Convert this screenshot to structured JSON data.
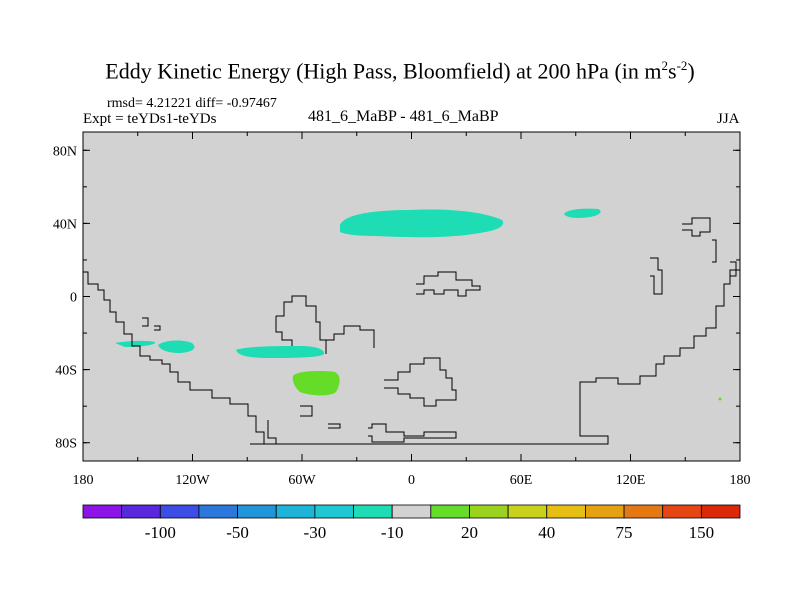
{
  "title": {
    "main": "Eddy Kinetic Energy (High Pass, Bloomfield) at 200 hPa (in m",
    "sup1": "2",
    "mid": "s",
    "sup2": "-2",
    "end": ")"
  },
  "stats": "rmsd= 4.21221 diff= -0.97467",
  "expt": "Expt = teYDs1-teYDs",
  "case": "481_6_MaBP - 481_6_MaBP",
  "season": "JJA",
  "chart_data": {
    "type": "contour-map",
    "title": "Eddy Kinetic Energy (High Pass, Bloomfield) at 200 hPa (in m2s-2)",
    "x_ticks": [
      "180",
      "120W",
      "60W",
      "0",
      "60E",
      "120E",
      "180"
    ],
    "y_ticks": [
      "80N",
      "40N",
      "0",
      "40S",
      "80S"
    ],
    "xlim": [
      -180,
      180
    ],
    "ylim": [
      -90,
      90
    ],
    "colorbar": {
      "levels": [
        -150,
        -100,
        -75,
        -50,
        -40,
        -30,
        -20,
        -10,
        10,
        20,
        30,
        40,
        50,
        75,
        100,
        150
      ],
      "labels": [
        "-100",
        "-50",
        "-30",
        "-10",
        "20",
        "40",
        "75",
        "150"
      ],
      "colors": [
        "#8c14e6",
        "#5a28dc",
        "#3c4ee6",
        "#2a78dc",
        "#1e96d8",
        "#1eb4d8",
        "#1ec8d2",
        "#1edcb4",
        "#d2d2d2",
        "#64dc28",
        "#9ad21e",
        "#c8d21e",
        "#e6be14",
        "#e6a014",
        "#e67814",
        "#e64614",
        "#dc280a"
      ]
    },
    "anomaly_regions": [
      {
        "label": "-10 to -20",
        "color": "#1edcb4",
        "lon": [
          -40,
          50
        ],
        "lat": [
          33,
          48
        ]
      },
      {
        "label": "-10 to -20",
        "color": "#1edcb4",
        "lon": [
          83,
          103
        ],
        "lat": [
          42,
          47
        ]
      },
      {
        "label": "-10 to -20",
        "color": "#1edcb4",
        "lon": [
          -163,
          -145
        ],
        "lat": [
          -25,
          -28
        ]
      },
      {
        "label": "-10 to -20",
        "color": "#1edcb4",
        "lon": [
          -140,
          -118
        ],
        "lat": [
          -24,
          -32
        ]
      },
      {
        "label": "-10 to -20",
        "color": "#1edcb4",
        "lon": [
          -96,
          -49
        ],
        "lat": [
          -28,
          -36
        ]
      },
      {
        "label": "10 to 20",
        "color": "#64dc28",
        "lon": [
          -67,
          -40
        ],
        "lat": [
          -40,
          -52
        ]
      }
    ]
  }
}
